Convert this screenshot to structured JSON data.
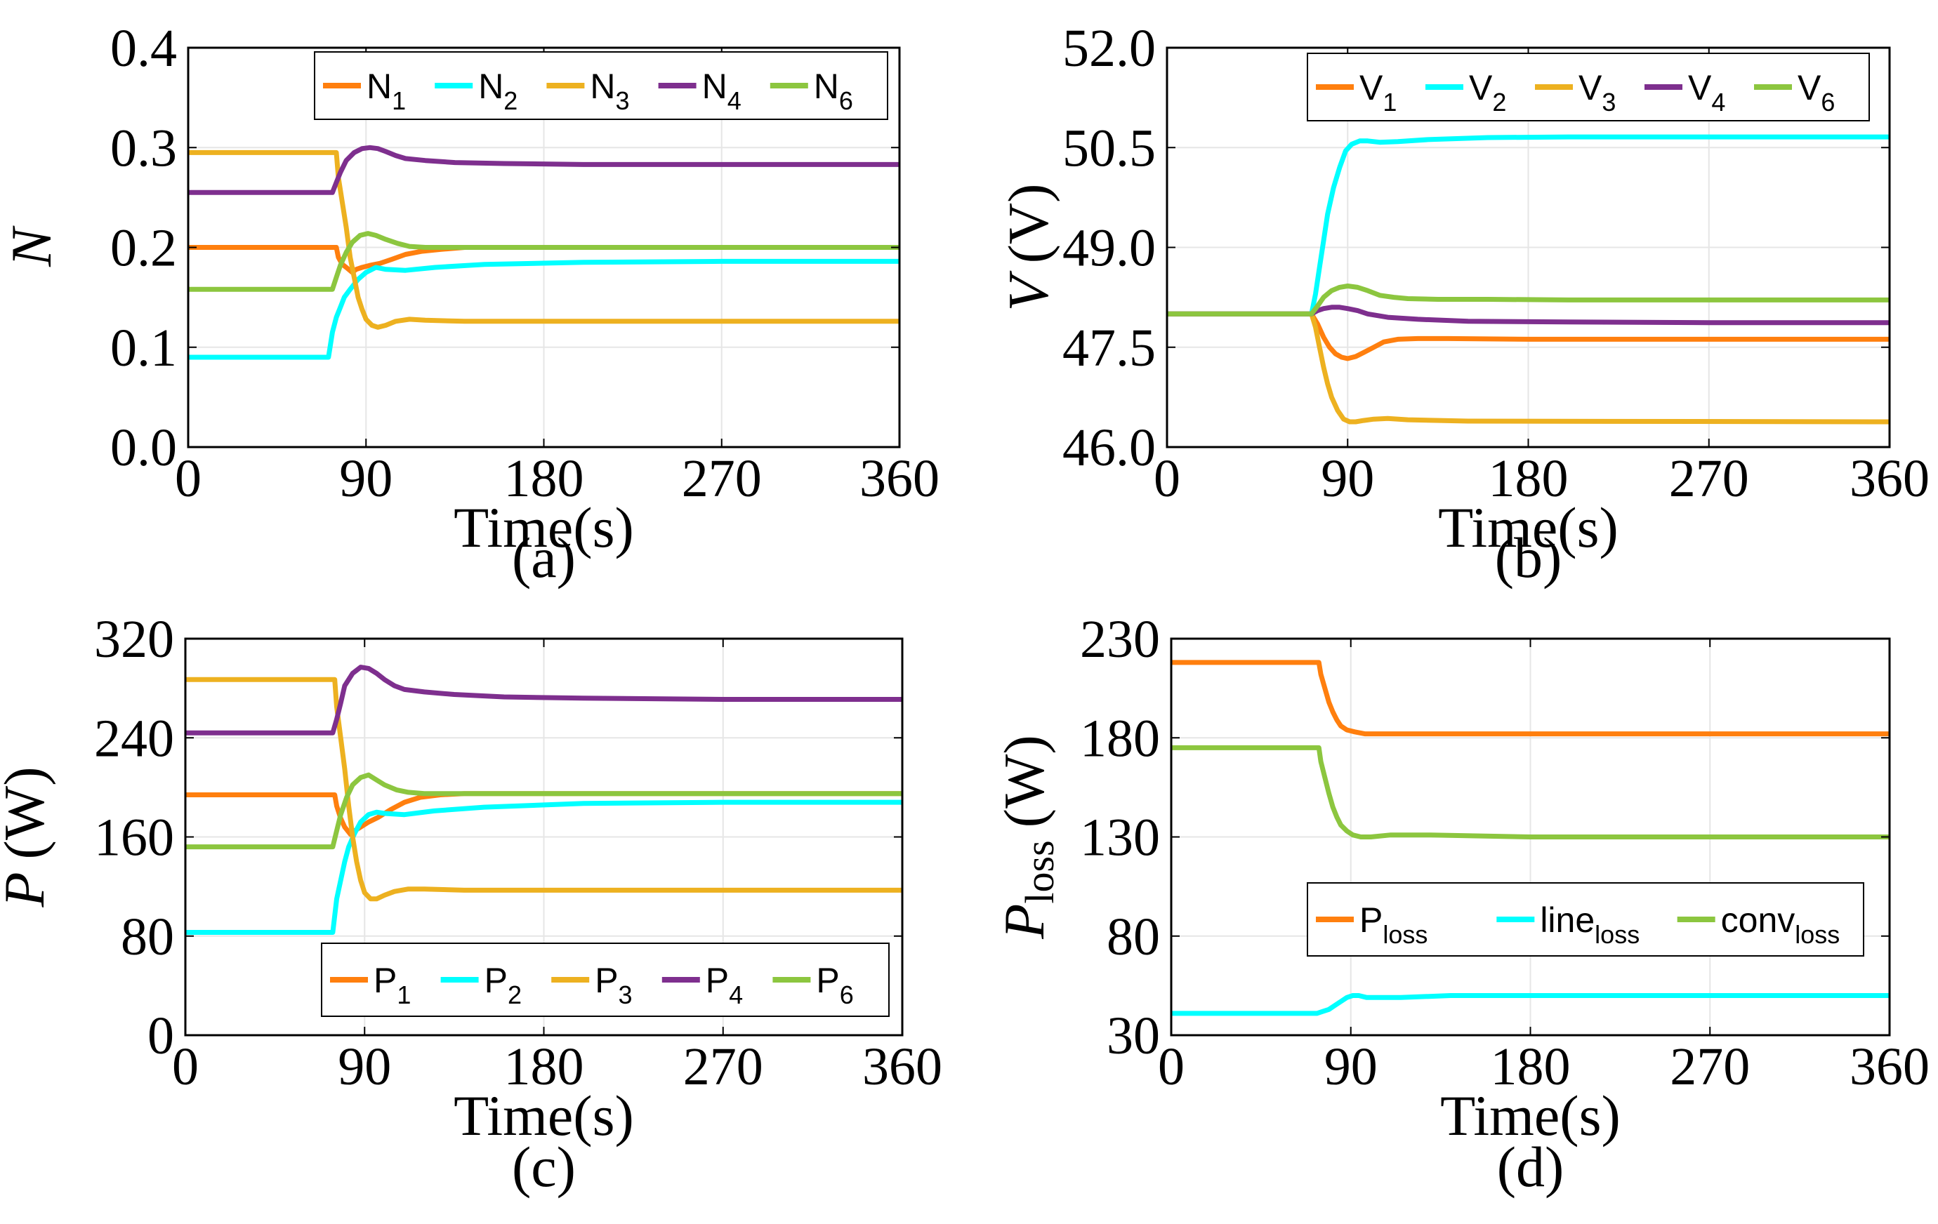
{
  "chart_data": [
    {
      "type": "line",
      "panel": "(a)",
      "caption": "(a)",
      "xlabel": "Time(s)",
      "ylabel": "N",
      "ylabel_sub": "",
      "ylabel_unit": "",
      "xlim": [
        0,
        360
      ],
      "ylim": [
        0.0,
        0.4
      ],
      "xticks": [
        0,
        90,
        180,
        270,
        360
      ],
      "xtick_labels": [
        "0",
        "90",
        "180",
        "270",
        "360"
      ],
      "yticks": [
        0.0,
        0.1,
        0.2,
        0.3,
        0.4
      ],
      "ytick_labels": [
        "0.0",
        "0.1",
        "0.2",
        "0.3",
        "0.4"
      ],
      "grid": true,
      "legend_position": "top-right",
      "series": [
        {
          "name": "N",
          "sub": "1",
          "color": "#FF7F0E",
          "x": [
            0,
            75,
            76,
            78,
            80,
            83,
            85,
            88,
            92,
            97,
            103,
            110,
            118,
            128,
            140,
            360
          ],
          "values": [
            0.2,
            0.2,
            0.19,
            0.183,
            0.18,
            0.175,
            0.178,
            0.18,
            0.182,
            0.184,
            0.188,
            0.193,
            0.196,
            0.198,
            0.2,
            0.2
          ]
        },
        {
          "name": "N",
          "sub": "2",
          "color": "#00FFFF",
          "x": [
            0,
            71,
            73,
            75,
            77,
            79,
            82,
            86,
            90,
            95,
            100,
            110,
            125,
            150,
            200,
            270,
            360
          ],
          "values": [
            0.09,
            0.09,
            0.115,
            0.13,
            0.14,
            0.15,
            0.158,
            0.168,
            0.175,
            0.18,
            0.178,
            0.177,
            0.18,
            0.183,
            0.185,
            0.186,
            0.186
          ]
        },
        {
          "name": "N",
          "sub": "3",
          "color": "#EDB120",
          "x": [
            0,
            75,
            76,
            78,
            80,
            82,
            84,
            86,
            88,
            90,
            93,
            96,
            100,
            105,
            112,
            120,
            140,
            360
          ],
          "values": [
            0.295,
            0.295,
            0.27,
            0.245,
            0.22,
            0.19,
            0.17,
            0.15,
            0.138,
            0.128,
            0.122,
            0.12,
            0.122,
            0.126,
            0.128,
            0.127,
            0.126,
            0.126
          ]
        },
        {
          "name": "N",
          "sub": "4",
          "color": "#7E2F8E",
          "x": [
            0,
            73,
            75,
            77,
            80,
            84,
            88,
            92,
            96,
            100,
            105,
            110,
            120,
            135,
            160,
            200,
            270,
            360
          ],
          "values": [
            0.255,
            0.255,
            0.265,
            0.275,
            0.287,
            0.295,
            0.299,
            0.3,
            0.299,
            0.296,
            0.292,
            0.289,
            0.287,
            0.285,
            0.284,
            0.283,
            0.283,
            0.283
          ]
        },
        {
          "name": "N",
          "sub": "6",
          "color": "#8CC63F",
          "x": [
            0,
            73,
            75,
            77,
            80,
            83,
            87,
            91,
            95,
            100,
            106,
            112,
            120,
            135,
            160,
            360
          ],
          "values": [
            0.158,
            0.158,
            0.17,
            0.182,
            0.195,
            0.205,
            0.212,
            0.214,
            0.212,
            0.208,
            0.204,
            0.201,
            0.2,
            0.2,
            0.2,
            0.2
          ]
        }
      ]
    },
    {
      "type": "line",
      "panel": "(b)",
      "caption": "(b)",
      "xlabel": "Time(s)",
      "ylabel": "V",
      "ylabel_sub": "",
      "ylabel_unit": "(V)",
      "xlim": [
        0,
        360
      ],
      "ylim": [
        46.0,
        52.0
      ],
      "xticks": [
        0,
        90,
        180,
        270,
        360
      ],
      "xtick_labels": [
        "0",
        "90",
        "180",
        "270",
        "360"
      ],
      "yticks": [
        46.0,
        47.5,
        49.0,
        50.5,
        52.0
      ],
      "ytick_labels": [
        "46.0",
        "47.5",
        "49.0",
        "50.5",
        "52.0"
      ],
      "grid": true,
      "legend_position": "top-right",
      "series": [
        {
          "name": "V",
          "sub": "1",
          "color": "#FF7F0E",
          "x": [
            0,
            72,
            75,
            78,
            81,
            84,
            87,
            90,
            94,
            98,
            103,
            108,
            115,
            125,
            140,
            180,
            360
          ],
          "values": [
            48.0,
            48.0,
            47.85,
            47.65,
            47.5,
            47.4,
            47.35,
            47.33,
            47.36,
            47.42,
            47.5,
            47.58,
            47.62,
            47.63,
            47.63,
            47.62,
            47.62
          ]
        },
        {
          "name": "V",
          "sub": "2",
          "color": "#00FFFF",
          "x": [
            0,
            72,
            74,
            76,
            78,
            80,
            83,
            86,
            89,
            92,
            96,
            100,
            106,
            115,
            130,
            160,
            200,
            270,
            360
          ],
          "values": [
            48.0,
            48.0,
            48.3,
            48.7,
            49.1,
            49.5,
            49.9,
            50.2,
            50.45,
            50.55,
            50.6,
            50.6,
            50.58,
            50.59,
            50.62,
            50.65,
            50.66,
            50.66,
            50.66
          ]
        },
        {
          "name": "V",
          "sub": "3",
          "color": "#EDB120",
          "x": [
            0,
            72,
            74,
            76,
            78,
            80,
            82,
            85,
            88,
            91,
            94,
            98,
            103,
            110,
            120,
            150,
            360
          ],
          "values": [
            48.0,
            48.0,
            47.8,
            47.5,
            47.2,
            46.95,
            46.75,
            46.55,
            46.42,
            46.38,
            46.38,
            46.4,
            46.42,
            46.43,
            46.41,
            46.39,
            46.38
          ]
        },
        {
          "name": "V",
          "sub": "4",
          "color": "#7E2F8E",
          "x": [
            0,
            72,
            75,
            78,
            82,
            86,
            90,
            95,
            100,
            110,
            125,
            150,
            200,
            270,
            360
          ],
          "values": [
            48.0,
            48.0,
            48.05,
            48.08,
            48.1,
            48.1,
            48.08,
            48.05,
            48.0,
            47.95,
            47.92,
            47.89,
            47.88,
            47.87,
            47.87
          ]
        },
        {
          "name": "V",
          "sub": "6",
          "color": "#8CC63F",
          "x": [
            0,
            72,
            75,
            78,
            82,
            86,
            90,
            95,
            100,
            106,
            113,
            120,
            135,
            160,
            200,
            360
          ],
          "values": [
            48.0,
            48.0,
            48.12,
            48.25,
            48.35,
            48.4,
            48.42,
            48.4,
            48.35,
            48.28,
            48.25,
            48.23,
            48.22,
            48.22,
            48.21,
            48.21
          ]
        }
      ]
    },
    {
      "type": "line",
      "panel": "(c)",
      "caption": "(c)",
      "xlabel": "Time(s)",
      "ylabel": "P",
      "ylabel_sub": "",
      "ylabel_unit": "(W)",
      "xlim": [
        0,
        360
      ],
      "ylim": [
        0,
        320
      ],
      "xticks": [
        0,
        90,
        180,
        270,
        360
      ],
      "xtick_labels": [
        "0",
        "90",
        "180",
        "270",
        "360"
      ],
      "yticks": [
        0,
        80,
        160,
        240,
        320
      ],
      "ytick_labels": [
        "0",
        "80",
        "160",
        "240",
        "320"
      ],
      "grid": true,
      "legend_position": "bottom-right",
      "series": [
        {
          "name": "P",
          "sub": "1",
          "color": "#FF7F0E",
          "x": [
            0,
            75,
            76,
            78,
            80,
            83,
            85,
            88,
            92,
            97,
            103,
            110,
            118,
            128,
            140,
            360
          ],
          "values": [
            194,
            194,
            185,
            175,
            168,
            162,
            165,
            168,
            172,
            176,
            182,
            188,
            192,
            194,
            195,
            195
          ]
        },
        {
          "name": "P",
          "sub": "2",
          "color": "#00FFFF",
          "x": [
            0,
            74,
            76,
            78,
            80,
            82,
            85,
            88,
            92,
            96,
            100,
            110,
            125,
            150,
            200,
            270,
            360
          ],
          "values": [
            83,
            83,
            110,
            125,
            140,
            152,
            163,
            172,
            178,
            180,
            179,
            178,
            181,
            184,
            187,
            188,
            188
          ]
        },
        {
          "name": "P",
          "sub": "3",
          "color": "#EDB120",
          "x": [
            0,
            75,
            76,
            78,
            80,
            82,
            84,
            86,
            88,
            90,
            93,
            96,
            100,
            105,
            112,
            120,
            140,
            360
          ],
          "values": [
            287,
            287,
            265,
            240,
            215,
            185,
            160,
            140,
            125,
            115,
            110,
            110,
            113,
            116,
            118,
            118,
            117,
            117
          ]
        },
        {
          "name": "P",
          "sub": "4",
          "color": "#7E2F8E",
          "x": [
            0,
            74,
            76,
            78,
            80,
            84,
            88,
            92,
            96,
            100,
            105,
            110,
            120,
            135,
            160,
            200,
            270,
            360
          ],
          "values": [
            244,
            244,
            255,
            268,
            282,
            292,
            297,
            296,
            292,
            287,
            282,
            279,
            277,
            275,
            273,
            272,
            271,
            271
          ]
        },
        {
          "name": "P",
          "sub": "6",
          "color": "#8CC63F",
          "x": [
            0,
            74,
            76,
            78,
            81,
            84,
            88,
            92,
            96,
            100,
            106,
            112,
            120,
            135,
            160,
            360
          ],
          "values": [
            152,
            152,
            165,
            178,
            192,
            202,
            208,
            210,
            206,
            202,
            198,
            196,
            195,
            195,
            195,
            195
          ]
        }
      ]
    },
    {
      "type": "line",
      "panel": "(d)",
      "caption": "(d)",
      "xlabel": "Time(s)",
      "ylabel": "P",
      "ylabel_sub": "loss",
      "ylabel_unit": "(W)",
      "xlim": [
        0,
        360
      ],
      "ylim": [
        30,
        230
      ],
      "xticks": [
        0,
        90,
        180,
        270,
        360
      ],
      "xtick_labels": [
        "0",
        "90",
        "180",
        "270",
        "360"
      ],
      "yticks": [
        30,
        80,
        130,
        180,
        230
      ],
      "ytick_labels": [
        "30",
        "80",
        "130",
        "180",
        "230"
      ],
      "grid": true,
      "legend_position": "center-right",
      "series": [
        {
          "name": "P",
          "sub": "loss",
          "color": "#FF7F0E",
          "x": [
            0,
            74,
            75,
            77,
            79,
            81,
            83,
            85,
            88,
            92,
            97,
            105,
            120,
            360
          ],
          "values": [
            218,
            218,
            212,
            205,
            198,
            193,
            189,
            186,
            184,
            183,
            182,
            182,
            182,
            182
          ]
        },
        {
          "name": "line",
          "sub": "loss",
          "color": "#00FFFF",
          "x": [
            0,
            73,
            76,
            79,
            82,
            85,
            88,
            91,
            94,
            98,
            104,
            115,
            140,
            360
          ],
          "values": [
            41,
            41,
            42,
            43,
            45,
            47,
            49,
            50,
            50,
            49,
            49,
            49,
            50,
            50
          ]
        },
        {
          "name": "conv",
          "sub": "loss",
          "color": "#8CC63F",
          "x": [
            0,
            74,
            75,
            77,
            79,
            81,
            83,
            85,
            88,
            91,
            95,
            100,
            110,
            130,
            180,
            360
          ],
          "values": [
            175,
            175,
            168,
            160,
            152,
            145,
            140,
            136,
            133,
            131,
            130,
            130,
            131,
            131,
            130,
            130
          ]
        }
      ]
    }
  ]
}
